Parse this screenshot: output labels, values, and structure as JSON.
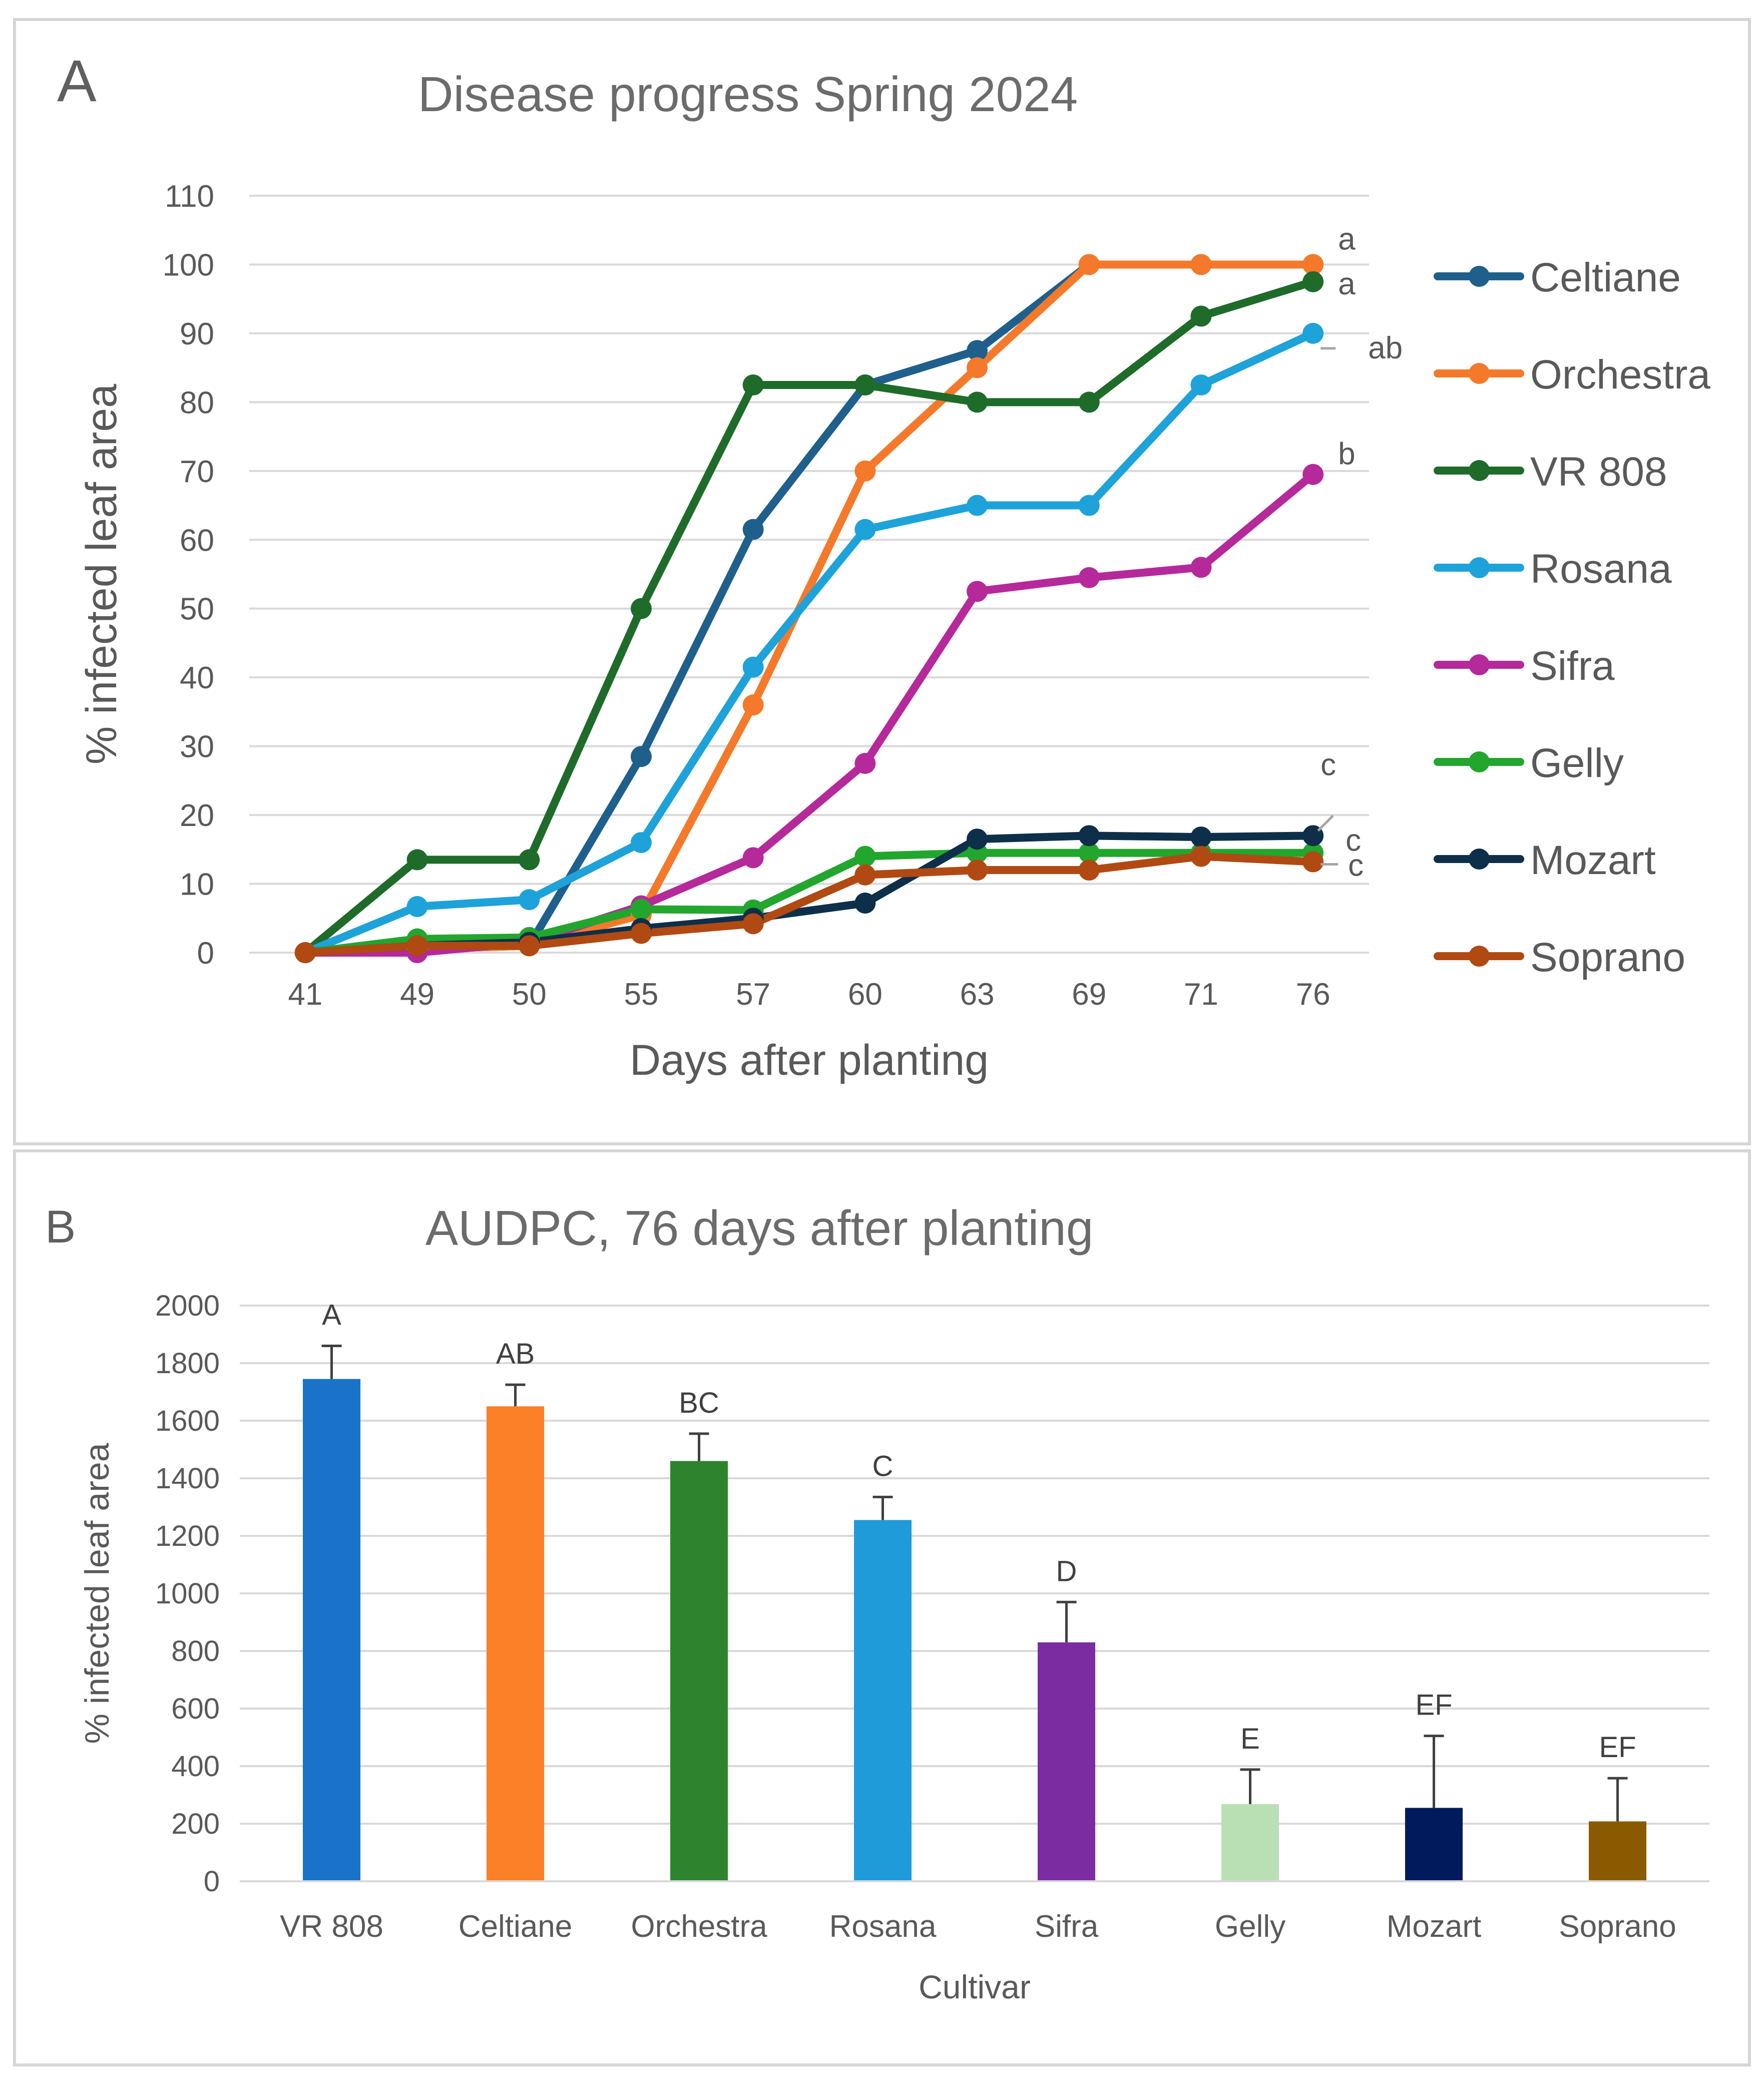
{
  "chart_data": [
    {
      "panel_label": "A",
      "type": "line",
      "title": "Disease progress Spring 2024",
      "xlabel": "Days after planting",
      "ylabel": "% infected leaf area",
      "categories": [
        "41",
        "49",
        "50",
        "55",
        "57",
        "60",
        "63",
        "69",
        "71",
        "76"
      ],
      "ylim": [
        0,
        110
      ],
      "yticks": [
        "0",
        "10",
        "20",
        "30",
        "40",
        "50",
        "60",
        "70",
        "80",
        "90",
        "100",
        "110"
      ],
      "grid": true,
      "legend": "right",
      "series": [
        {
          "name": "Celtiane",
          "color": "#1f5f8b",
          "values": [
            0,
            0.5,
            1,
            28.5,
            61.5,
            82.5,
            87.5,
            100,
            100,
            100
          ],
          "end_label": "a"
        },
        {
          "name": "Orchestra",
          "color": "#f5792a",
          "values": [
            0,
            0.5,
            1,
            5.5,
            36,
            70,
            85,
            100,
            100,
            100
          ],
          "end_label": ""
        },
        {
          "name": "VR 808",
          "color": "#1e6b2a",
          "values": [
            0,
            13.5,
            13.5,
            50,
            82.5,
            82.5,
            80,
            80,
            92.5,
            97.5
          ],
          "end_label": "a"
        },
        {
          "name": "Rosana",
          "color": "#1ea2da",
          "values": [
            0,
            6.7,
            7.7,
            16,
            41.5,
            61.5,
            65,
            65,
            82.5,
            90
          ],
          "end_label": "ab"
        },
        {
          "name": "Sifra",
          "color": "#b5299b",
          "values": [
            0,
            0,
            1.5,
            6.8,
            13.8,
            27.5,
            52.5,
            54.5,
            56,
            69.5
          ],
          "end_label": "b"
        },
        {
          "name": "Gelly",
          "color": "#22a62e",
          "values": [
            0,
            2,
            2.2,
            6.3,
            6.2,
            14,
            14.5,
            14.5,
            14.5,
            14.5
          ],
          "end_label": "c"
        },
        {
          "name": "Mozart",
          "color": "#0d2f4a",
          "values": [
            0,
            1,
            1.5,
            3.5,
            5,
            7.2,
            16.5,
            17,
            16.8,
            17
          ],
          "end_label": "c"
        },
        {
          "name": "Soprano",
          "color": "#b04a12",
          "values": [
            0,
            1,
            1,
            2.8,
            4.2,
            11.3,
            12,
            12,
            14,
            13.2
          ],
          "end_label": "c"
        }
      ]
    },
    {
      "panel_label": "B",
      "type": "bar",
      "title": "AUDPC, 76 days after planting",
      "xlabel": "Cultivar",
      "ylabel": "% infected leaf area",
      "categories": [
        "VR 808",
        "Celtiane",
        "Orchestra",
        "Rosana",
        "Sifra",
        "Gelly",
        "Mozart",
        "Soprano"
      ],
      "values": [
        1745,
        1650,
        1460,
        1255,
        830,
        268,
        255,
        208
      ],
      "errors": [
        115,
        75,
        95,
        80,
        140,
        120,
        250,
        150
      ],
      "letters": [
        "A",
        "AB",
        "BC",
        "C",
        "D",
        "E",
        "EF",
        "EF"
      ],
      "colors": [
        "#1a73c8",
        "#fb8027",
        "#2e842e",
        "#1f9bd9",
        "#7b2ca0",
        "#b9e0b4",
        "#001a5c",
        "#8a5a00"
      ],
      "ylim": [
        0,
        2000
      ],
      "yticks": [
        "0",
        "200",
        "400",
        "600",
        "800",
        "1000",
        "1200",
        "1400",
        "1600",
        "1800",
        "2000"
      ],
      "grid": true
    }
  ]
}
